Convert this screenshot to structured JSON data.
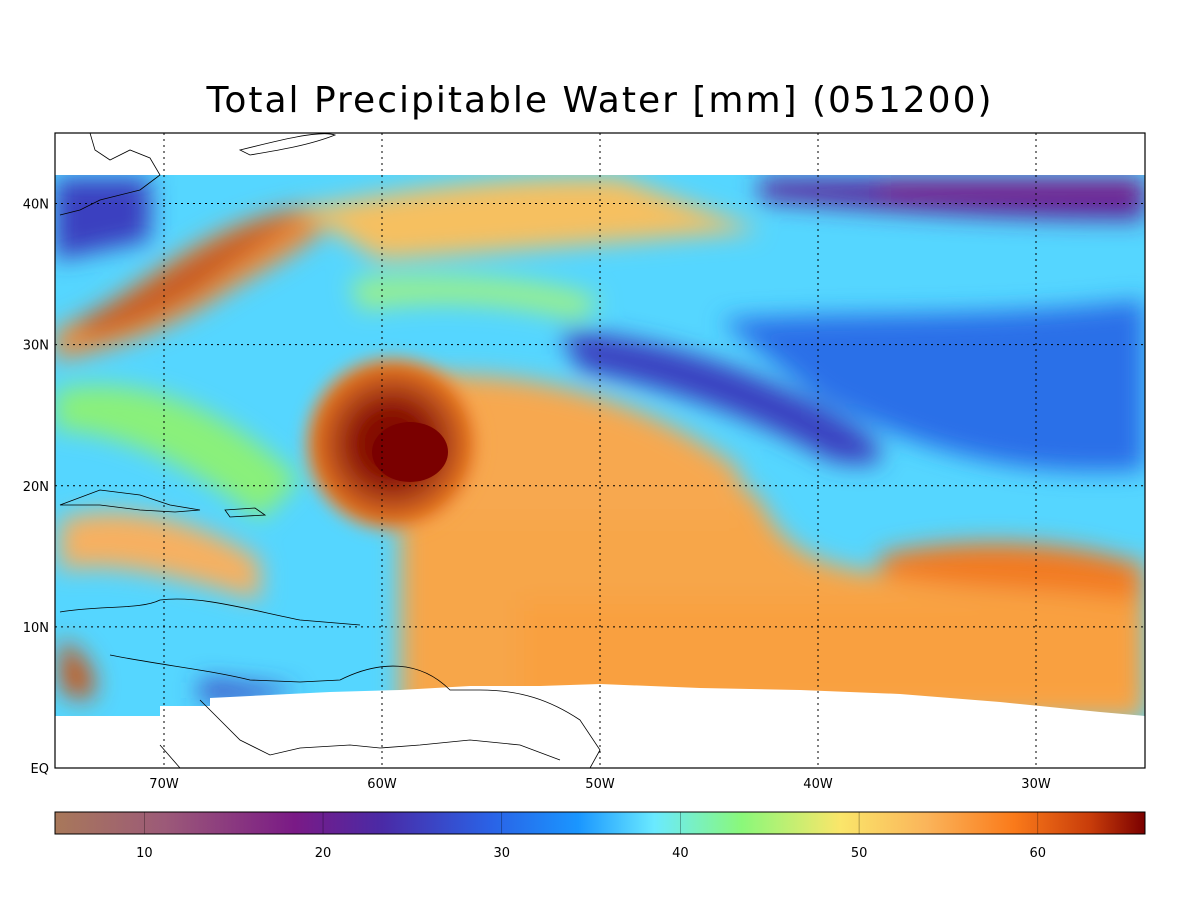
{
  "title": "Total Precipitable Water [mm]  (051200)",
  "map": {
    "lon_range": [
      -75,
      -25
    ],
    "lat_range": [
      0,
      45
    ],
    "data_lat_top": 42,
    "x_ticks": [
      {
        "label": "70W",
        "lon": -70
      },
      {
        "label": "60W",
        "lon": -60
      },
      {
        "label": "50W",
        "lon": -50
      },
      {
        "label": "40W",
        "lon": -40
      },
      {
        "label": "30W",
        "lon": -30
      }
    ],
    "y_ticks": [
      {
        "label": "EQ",
        "lat": 0
      },
      {
        "label": "10N",
        "lat": 10
      },
      {
        "label": "20N",
        "lat": 20
      },
      {
        "label": "30N",
        "lat": 30
      },
      {
        "label": "40N",
        "lat": 40
      }
    ],
    "grid": "dotted",
    "background_color": "#55d6ff"
  },
  "colorbar": {
    "range": [
      5,
      66
    ],
    "ticks": [
      "10",
      "20",
      "30",
      "40",
      "50",
      "60"
    ],
    "colors": [
      "#a8785a",
      "#9c5a78",
      "#7a1a86",
      "#4a2aa6",
      "#2a62e6",
      "#1a96ff",
      "#6aeaff",
      "#8af87a",
      "#fae66a",
      "#fab45a",
      "#fa7a1a",
      "#c83c0a",
      "#7a0000"
    ]
  },
  "features": [
    {
      "name": "hurricane",
      "lon": -59,
      "lat": 22,
      "value_mm": 66
    },
    {
      "name": "dry-band",
      "value_mm": 20
    },
    {
      "name": "moist-tropics",
      "value_mm": 52
    }
  ]
}
